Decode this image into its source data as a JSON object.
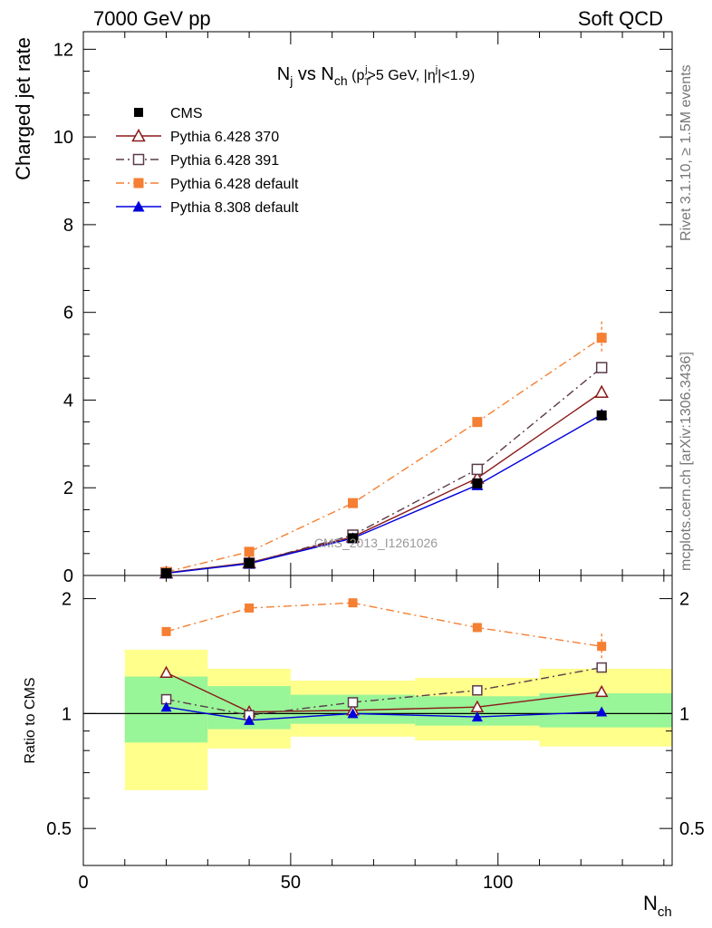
{
  "header": {
    "energy": "7000 GeV pp",
    "process": "Soft QCD"
  },
  "side": {
    "rivet": "Rivet 3.1.10, ≥ 1.5M events",
    "mcplots": "mcplots.cern.ch [arXiv:1306.3436]"
  },
  "watermark": "CMS_2013_I1261026",
  "chart_data": {
    "type": "line",
    "title": {
      "main": "N",
      "main_sub": "j",
      "mid": " vs N",
      "mid_sub": "ch",
      "cond1": " (p",
      "cond_sub": "T",
      "cond_sup": "j",
      "cond2": ">5 GeV, |η",
      "cond_sup2": "j",
      "cond3": "|<1.9)"
    },
    "xlabel": "N",
    "xlabel_sub": "ch",
    "ylabel": "Charged jet rate",
    "ratio_ylabel": "Ratio to CMS",
    "xlim": [
      0,
      142
    ],
    "ylim": [
      0,
      12.4
    ],
    "ratio_ylim": [
      0.4,
      2.3
    ],
    "x_ticks": [
      "0",
      "50",
      "100"
    ],
    "y_ticks": [
      "0",
      "2",
      "4",
      "6",
      "8",
      "10",
      "12"
    ],
    "ratio_ticks": [
      "0.5",
      "1",
      "2"
    ],
    "x": [
      20,
      40,
      65,
      95,
      125
    ],
    "bins": [
      [
        10,
        30
      ],
      [
        30,
        50
      ],
      [
        50,
        80
      ],
      [
        80,
        110
      ],
      [
        110,
        142
      ]
    ],
    "band_inner": [
      [
        0.84,
        1.25
      ],
      [
        0.91,
        1.18
      ],
      [
        0.94,
        1.12
      ],
      [
        0.93,
        1.11
      ],
      [
        0.92,
        1.13
      ]
    ],
    "band_outer": [
      [
        0.63,
        1.47
      ],
      [
        0.81,
        1.31
      ],
      [
        0.87,
        1.22
      ],
      [
        0.85,
        1.24
      ],
      [
        0.82,
        1.31
      ]
    ],
    "series": [
      {
        "name": "CMS",
        "values": [
          0.05,
          0.28,
          0.85,
          2.1,
          3.65
        ],
        "color": "#000000",
        "marker": "square-filled",
        "line": "none"
      },
      {
        "name": "Pythia 6.428 370",
        "values": [
          0.06,
          0.29,
          0.88,
          2.22,
          4.18
        ],
        "color": "#8b1a1a",
        "marker": "triangle-open",
        "line": "solid"
      },
      {
        "name": "Pythia 6.428 391",
        "values": [
          0.06,
          0.28,
          0.92,
          2.42,
          4.74
        ],
        "color": "#5c3a4a",
        "marker": "square-open",
        "line": "dashdot"
      },
      {
        "name": "Pythia 6.428 default",
        "values": [
          0.08,
          0.54,
          1.65,
          3.5,
          5.42
        ],
        "color": "#f57f32",
        "marker": "square-filled",
        "line": "dashdot"
      },
      {
        "name": "Pythia 8.308 default",
        "values": [
          0.05,
          0.27,
          0.85,
          2.06,
          3.67
        ],
        "color": "#0000dd",
        "marker": "triangle-filled",
        "line": "solid"
      }
    ],
    "ratios": [
      {
        "name": "Pythia 6.428 370",
        "values": [
          1.28,
          1.01,
          1.02,
          1.04,
          1.14
        ]
      },
      {
        "name": "Pythia 6.428 391",
        "values": [
          1.09,
          0.99,
          1.07,
          1.15,
          1.32
        ]
      },
      {
        "name": "Pythia 6.428 default",
        "values": [
          1.64,
          1.89,
          1.95,
          1.68,
          1.5
        ]
      },
      {
        "name": "Pythia 8.308 default",
        "values": [
          1.04,
          0.96,
          1.0,
          0.98,
          1.01
        ]
      }
    ],
    "legend_position": "top-left"
  }
}
